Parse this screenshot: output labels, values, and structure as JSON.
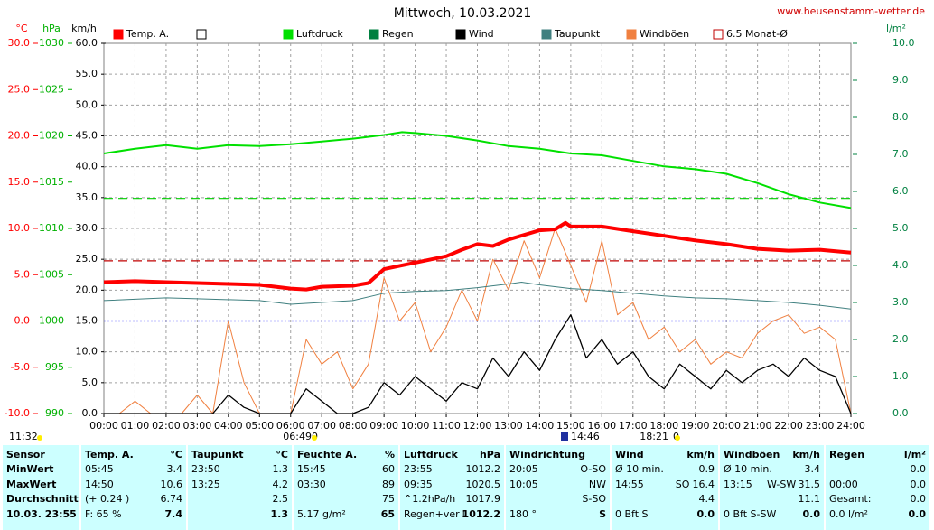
{
  "chart_data": {
    "type": "line",
    "title": "Mittwoch, 10.03.2021",
    "source": "www.heusenstamm-wetter.de",
    "xlim": [
      0,
      24
    ],
    "xticks": [
      {
        "value": 0,
        "label": "00:00"
      },
      {
        "value": 1,
        "label": "01:00"
      },
      {
        "value": 2,
        "label": "02:00"
      },
      {
        "value": 3,
        "label": "03:00"
      },
      {
        "value": 4,
        "label": "04:00"
      },
      {
        "value": 5,
        "label": "05:00"
      },
      {
        "value": 6,
        "label": "06:00"
      },
      {
        "value": 7,
        "label": "07:00"
      },
      {
        "value": 8,
        "label": "08:00"
      },
      {
        "value": 9,
        "label": "09:00"
      },
      {
        "value": 10,
        "label": "10:00"
      },
      {
        "value": 11,
        "label": "11:00"
      },
      {
        "value": 12,
        "label": "12:00"
      },
      {
        "value": 13,
        "label": "13:00"
      },
      {
        "value": 14,
        "label": "14:00"
      },
      {
        "value": 15,
        "label": "15:00"
      },
      {
        "value": 16,
        "label": "16:00"
      },
      {
        "value": 17,
        "label": "17:00"
      },
      {
        "value": 18,
        "label": "18:00"
      },
      {
        "value": 19,
        "label": "19:00"
      },
      {
        "value": 20,
        "label": "20:00"
      },
      {
        "value": 21,
        "label": "21:00"
      },
      {
        "value": 22,
        "label": "22:00"
      },
      {
        "value": 23,
        "label": "23:00"
      },
      {
        "value": 24,
        "label": "24:00"
      }
    ],
    "grid": true,
    "axes": [
      {
        "label": "°C",
        "color": "#ff0000",
        "lim": [
          -10,
          30
        ],
        "ticks": [
          {
            "value": 30,
            "label": "30.0"
          },
          {
            "value": 25,
            "label": "25.0"
          },
          {
            "value": 20,
            "label": "20.0"
          },
          {
            "value": 15,
            "label": "15.0"
          },
          {
            "value": 10,
            "label": "10.0"
          },
          {
            "value": 5,
            "label": "5.0"
          },
          {
            "value": 0,
            "label": "0.0"
          },
          {
            "value": -5,
            "label": "-5.0"
          },
          {
            "value": -10,
            "label": "-10.0"
          }
        ]
      },
      {
        "label": "hPa",
        "color": "#00b000",
        "lim": [
          990,
          1030
        ],
        "ticks": [
          1030,
          1025,
          1020,
          1015,
          1010,
          1005,
          1000,
          995,
          990
        ]
      },
      {
        "label": "km/h",
        "color": "#000000",
        "lim": [
          0,
          60
        ],
        "ticks": [
          {
            "value": 60,
            "label": "60.0"
          },
          {
            "value": 55,
            "label": "55.0"
          },
          {
            "value": 50,
            "label": "50.0"
          },
          {
            "value": 45,
            "label": "45.0"
          },
          {
            "value": 40,
            "label": "40.0"
          },
          {
            "value": 35,
            "label": "35.0"
          },
          {
            "value": 30,
            "label": "30.0"
          },
          {
            "value": 25,
            "label": "25.0"
          },
          {
            "value": 20,
            "label": "20.0"
          },
          {
            "value": 15,
            "label": "15.0"
          },
          {
            "value": 10,
            "label": "10.0"
          },
          {
            "value": 5,
            "label": "5.0"
          },
          {
            "value": 0,
            "label": "0.0"
          }
        ]
      },
      {
        "label": "l/m²",
        "color": "#008040",
        "lim": [
          0,
          10
        ],
        "ticks": [
          {
            "value": 10,
            "label": "10.0"
          },
          {
            "value": 9,
            "label": "9.0"
          },
          {
            "value": 8,
            "label": "8.0"
          },
          {
            "value": 7,
            "label": "7.0"
          },
          {
            "value": 6,
            "label": "6.0"
          },
          {
            "value": 5,
            "label": "5.0"
          },
          {
            "value": 4,
            "label": "4.0"
          },
          {
            "value": 3,
            "label": "3.0"
          },
          {
            "value": 2,
            "label": "2.0"
          },
          {
            "value": 1,
            "label": "1.0"
          },
          {
            "value": 0,
            "label": "0.0"
          }
        ]
      }
    ],
    "legend": [
      {
        "name": "Temp. A.",
        "color": "#ff0000"
      },
      {
        "color": "#ffffff"
      },
      {
        "name": "Luftdruck",
        "color": "#00e000"
      },
      {
        "name": "Regen",
        "color": "#008040"
      },
      {
        "name": "Wind",
        "color": "#000000"
      },
      {
        "name": "Taupunkt",
        "color": "#408080"
      },
      {
        "name": "Windböen",
        "color": "#f08040"
      },
      {
        "name": "6.5 Monat-Ø",
        "color": "#c00000"
      }
    ],
    "reference_lines": [
      {
        "axis": 0,
        "value": 6.5,
        "color": "#c00000",
        "style": "dashed"
      },
      {
        "axis": 1,
        "value": 1013.25,
        "color": "#00d000",
        "style": "dashed"
      },
      {
        "axis": 0,
        "value": 0,
        "color": "#0000ff",
        "style": "dotted"
      }
    ],
    "series": [
      {
        "legend": 6,
        "axis": 2,
        "x": [
          0,
          0.5,
          1,
          1.5,
          2,
          2.5,
          3,
          3.5,
          4,
          4.5,
          5,
          5.5,
          6,
          6.5,
          7,
          7.5,
          8,
          8.5,
          9,
          9.5,
          10,
          10.5,
          11,
          11.5,
          12,
          12.5,
          13,
          13.5,
          14,
          14.5,
          15,
          15.5,
          16,
          16.5,
          17,
          17.5,
          18,
          18.5,
          19,
          19.5,
          20,
          20.5,
          21,
          21.5,
          22,
          22.5,
          23,
          23.5,
          24
        ],
        "values": [
          0,
          0,
          2,
          0,
          0,
          0,
          3,
          0,
          15,
          5,
          0,
          0,
          0,
          12,
          8,
          10,
          4,
          8,
          22,
          15,
          18,
          10,
          14,
          20,
          15,
          25,
          20,
          28,
          22,
          30,
          24,
          18,
          28,
          16,
          18,
          12,
          14,
          10,
          12,
          8,
          10,
          9,
          13,
          15,
          16,
          13,
          14,
          12,
          0
        ]
      },
      {
        "legend": 4,
        "axis": 2,
        "x": [
          0,
          0.5,
          1,
          1.5,
          2,
          2.5,
          3,
          3.5,
          4,
          4.5,
          5,
          5.5,
          6,
          6.5,
          7,
          7.5,
          8,
          8.5,
          9,
          9.5,
          10,
          10.5,
          11,
          11.5,
          12,
          12.5,
          13,
          13.5,
          14,
          14.5,
          15,
          15.5,
          16,
          16.5,
          17,
          17.5,
          18,
          18.5,
          19,
          19.5,
          20,
          20.5,
          21,
          21.5,
          22,
          22.5,
          23,
          23.5,
          24
        ],
        "values": [
          0,
          0,
          0,
          0,
          0,
          0,
          0,
          0,
          3,
          1,
          0,
          0,
          0,
          4,
          2,
          0,
          0,
          1,
          5,
          3,
          6,
          4,
          2,
          5,
          4,
          9,
          6,
          10,
          7,
          12,
          16,
          9,
          12,
          8,
          10,
          6,
          4,
          8,
          6,
          4,
          7,
          5,
          7,
          8,
          6,
          9,
          7,
          6,
          0
        ]
      },
      {
        "legend": 5,
        "axis": 0,
        "x": [
          0,
          2,
          3,
          5,
          6,
          7,
          8,
          9,
          10,
          11,
          12,
          13,
          13.42,
          14,
          15,
          16,
          17,
          18,
          19,
          20,
          21,
          22,
          23,
          24
        ],
        "values": [
          2.2,
          2.5,
          2.4,
          2.2,
          1.8,
          2.0,
          2.2,
          3.0,
          3.2,
          3.3,
          3.6,
          4.0,
          4.2,
          3.9,
          3.5,
          3.3,
          3.0,
          2.7,
          2.5,
          2.4,
          2.2,
          2.0,
          1.7,
          1.3
        ]
      },
      {
        "legend": 2,
        "axis": 1,
        "x": [
          0,
          1,
          2,
          3,
          4,
          5,
          6,
          7,
          8,
          9,
          9.58,
          10,
          11,
          12,
          13,
          14,
          15,
          16,
          17,
          18,
          19,
          20,
          21,
          22,
          23,
          24
        ],
        "values": [
          1018.1,
          1018.6,
          1019.0,
          1018.6,
          1019.0,
          1018.9,
          1019.1,
          1019.4,
          1019.7,
          1020.1,
          1020.4,
          1020.3,
          1020.0,
          1019.5,
          1018.9,
          1018.6,
          1018.1,
          1017.9,
          1017.3,
          1016.7,
          1016.4,
          1015.9,
          1014.9,
          1013.7,
          1012.8,
          1012.2
        ]
      },
      {
        "legend": 0,
        "axis": 0,
        "x": [
          0,
          1,
          2,
          3,
          4,
          5,
          6,
          6.5,
          7,
          8,
          8.5,
          9,
          10,
          11,
          11.5,
          12,
          12.5,
          13,
          14,
          14.5,
          14.83,
          15,
          16,
          17,
          18,
          19,
          20,
          21,
          22,
          23,
          24
        ],
        "values": [
          4.2,
          4.3,
          4.2,
          4.1,
          4.0,
          3.9,
          3.5,
          3.4,
          3.7,
          3.8,
          4.1,
          5.6,
          6.3,
          7.0,
          7.7,
          8.3,
          8.1,
          8.8,
          9.8,
          9.9,
          10.6,
          10.2,
          10.2,
          9.7,
          9.2,
          8.7,
          8.3,
          7.8,
          7.6,
          7.7,
          7.4
        ]
      }
    ],
    "sun_labels": [
      "11:32",
      "06:49",
      "0",
      "14:46",
      "18:21",
      "0"
    ]
  },
  "table": {
    "header": [
      [
        "Sensor"
      ],
      [
        "Temp. A.",
        "°C"
      ],
      [
        "Taupunkt",
        "°C"
      ],
      [
        "Feuchte A.",
        "%"
      ],
      [
        "Luftdruck",
        "hPa"
      ],
      [
        "Windrichtung"
      ],
      [
        "Wind",
        "km/h"
      ],
      [
        "Windböen",
        "km/h"
      ],
      [
        "Regen",
        "l/m²"
      ]
    ],
    "rows": [
      [
        [
          "MinWert"
        ],
        [
          "05:45",
          "3.4"
        ],
        [
          "23:50",
          "1.3"
        ],
        [
          "15:45",
          "60"
        ],
        [
          "23:55",
          "1012.2"
        ],
        [
          "20:05",
          "O-SO"
        ],
        [
          "Ø 10 min.",
          "0.9"
        ],
        [
          "Ø 10 min.",
          "3.4"
        ],
        [
          "0.0"
        ]
      ],
      [
        [
          "MaxWert"
        ],
        [
          "14:50",
          "10.6"
        ],
        [
          "13:25",
          "4.2"
        ],
        [
          "03:30",
          "89"
        ],
        [
          "09:35",
          "1020.5"
        ],
        [
          "10:05",
          "NW"
        ],
        [
          "14:55",
          "SO",
          "16.4"
        ],
        [
          "13:15",
          "W-SW",
          "31.5"
        ],
        [
          "00:00",
          "0.0"
        ]
      ],
      [
        [
          "Durchschnitt"
        ],
        [
          "(+ 0.24 )",
          "6.74"
        ],
        [
          "2.5"
        ],
        [
          "75"
        ],
        [
          "^1.2hPa/h",
          "1017.9"
        ],
        [
          "S-SO"
        ],
        [
          "4.4"
        ],
        [
          "11.1"
        ],
        [
          "Gesamt:",
          "0.0"
        ]
      ],
      [
        [
          "10.03. 23:55"
        ],
        [
          "F: 65 %",
          "7.4"
        ],
        [
          "1.3"
        ],
        [
          "5.17 g/m²",
          "65"
        ],
        [
          "Regen+ver↓",
          "1012.2"
        ],
        [
          "180 °",
          "S"
        ],
        [
          "0 Bft S",
          "0.0"
        ],
        [
          "0 Bft S-SW",
          "0.0"
        ],
        [
          "0.0 l/m²",
          "0.0"
        ]
      ]
    ]
  }
}
